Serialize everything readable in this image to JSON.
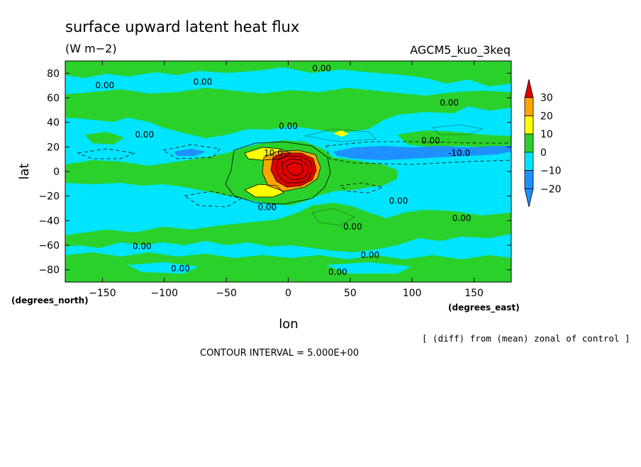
{
  "chart_data": {
    "type": "heatmap",
    "title": "surface upward latent heat flux",
    "units": "(W m−2)",
    "experiment": "AGCM5_kuo_3keq",
    "xlabel": "lon",
    "ylabel": "lat",
    "x_unit_note": "(degrees_east)",
    "y_unit_note": "(degrees_north)",
    "xlim": [
      -180,
      180
    ],
    "ylim": [
      -90,
      90
    ],
    "xticks": [
      -150,
      -100,
      -50,
      0,
      50,
      100,
      150
    ],
    "yticks": [
      80,
      60,
      40,
      20,
      0,
      -20,
      -40,
      -60,
      -80
    ],
    "contour_interval": "CONTOUR INTERVAL = 5.000E+00",
    "note": "[ (diff) from (mean) zonal of control ]",
    "colorbar": {
      "ticks": [
        30,
        20,
        10,
        0,
        -10,
        -20
      ],
      "levels": [
        {
          "range": [
            -30,
            -20
          ],
          "color": "#1E90FF"
        },
        {
          "range": [
            -20,
            -10
          ],
          "color": "#1E90FF"
        },
        {
          "range": [
            -10,
            0
          ],
          "color": "#00E5FF"
        },
        {
          "range": [
            0,
            10
          ],
          "color": "#2BD12B"
        },
        {
          "range": [
            10,
            20
          ],
          "color": "#FFFF00"
        },
        {
          "range": [
            20,
            30
          ],
          "color": "#FFA500"
        },
        {
          "range": [
            30,
            40
          ],
          "color": "#E00000"
        }
      ]
    },
    "contour_labels": [
      {
        "text": "0.00",
        "lon": 27,
        "lat": 84
      },
      {
        "text": "0.00",
        "lon": -148,
        "lat": 70
      },
      {
        "text": "0.00",
        "lon": -69,
        "lat": 73
      },
      {
        "text": "0.00",
        "lon": 130,
        "lat": 56
      },
      {
        "text": "0.00",
        "lon": -116,
        "lat": 30
      },
      {
        "text": "0.00",
        "lon": 0,
        "lat": 37
      },
      {
        "text": "0.00",
        "lon": 115,
        "lat": 25
      },
      {
        "text": "10.0",
        "lon": -12,
        "lat": 15
      },
      {
        "text": "-10.0",
        "lon": 138,
        "lat": 15
      },
      {
        "text": "0.00",
        "lon": -17,
        "lat": -29
      },
      {
        "text": "0.00",
        "lon": 89,
        "lat": -24
      },
      {
        "text": "0.00",
        "lon": 140,
        "lat": -38
      },
      {
        "text": "0.00",
        "lon": 52,
        "lat": -45
      },
      {
        "text": "0.00",
        "lon": -118,
        "lat": -61
      },
      {
        "text": "0.00",
        "lon": 66,
        "lat": -68
      },
      {
        "text": "0.00",
        "lon": -87,
        "lat": -79
      },
      {
        "text": "0.00",
        "lon": 40,
        "lat": -82
      }
    ]
  }
}
